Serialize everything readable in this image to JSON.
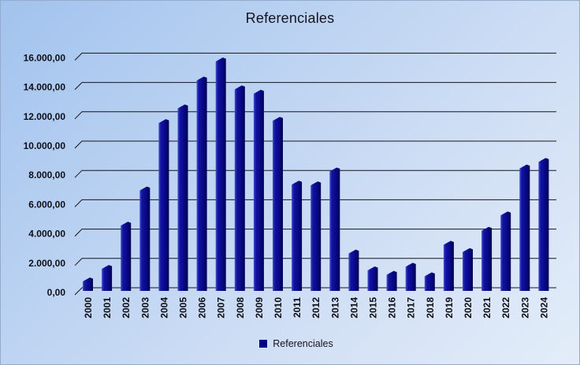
{
  "title": "Referenciales",
  "legend": {
    "label": "Referenciales",
    "swatch_color": "#00008b"
  },
  "colors": {
    "bar_highlight": "#4053cc",
    "bar_mid": "#12129e",
    "bar_main": "#0a0a90",
    "bar_shadow": "#000052",
    "gridline": "#15151f",
    "text": "#0e0e16",
    "background_top_left": "#a2c3ee",
    "background_bottom_right": "#e3edf9"
  },
  "chart_data": {
    "type": "bar",
    "style": "excel-3d",
    "title": "Referenciales",
    "series_name": "Referenciales",
    "categories": [
      "2000",
      "2001",
      "2002",
      "2003",
      "2004",
      "2005",
      "2006",
      "2007",
      "2008",
      "2009",
      "2010",
      "2011",
      "2012",
      "2013",
      "2014",
      "2015",
      "2016",
      "2017",
      "2018",
      "2019",
      "2020",
      "2021",
      "2022",
      "2023",
      "2024"
    ],
    "values": [
      700,
      1550,
      4500,
      6900,
      11500,
      12500,
      14400,
      15700,
      13800,
      13500,
      11650,
      7300,
      7250,
      8200,
      2600,
      1450,
      1150,
      1700,
      1050,
      3200,
      2700,
      4150,
      5200,
      8400,
      8850
    ],
    "xlabel": "",
    "ylabel": "",
    "ylim": [
      0,
      16000
    ],
    "ytick_step": 2000,
    "ytick_labels": [
      "0,00",
      "2.000,00",
      "4.000,00",
      "6.000,00",
      "8.000,00",
      "10.000,00",
      "12.000,00",
      "14.000,00",
      "16.000,00"
    ],
    "grid": true,
    "legend_position": "bottom"
  }
}
